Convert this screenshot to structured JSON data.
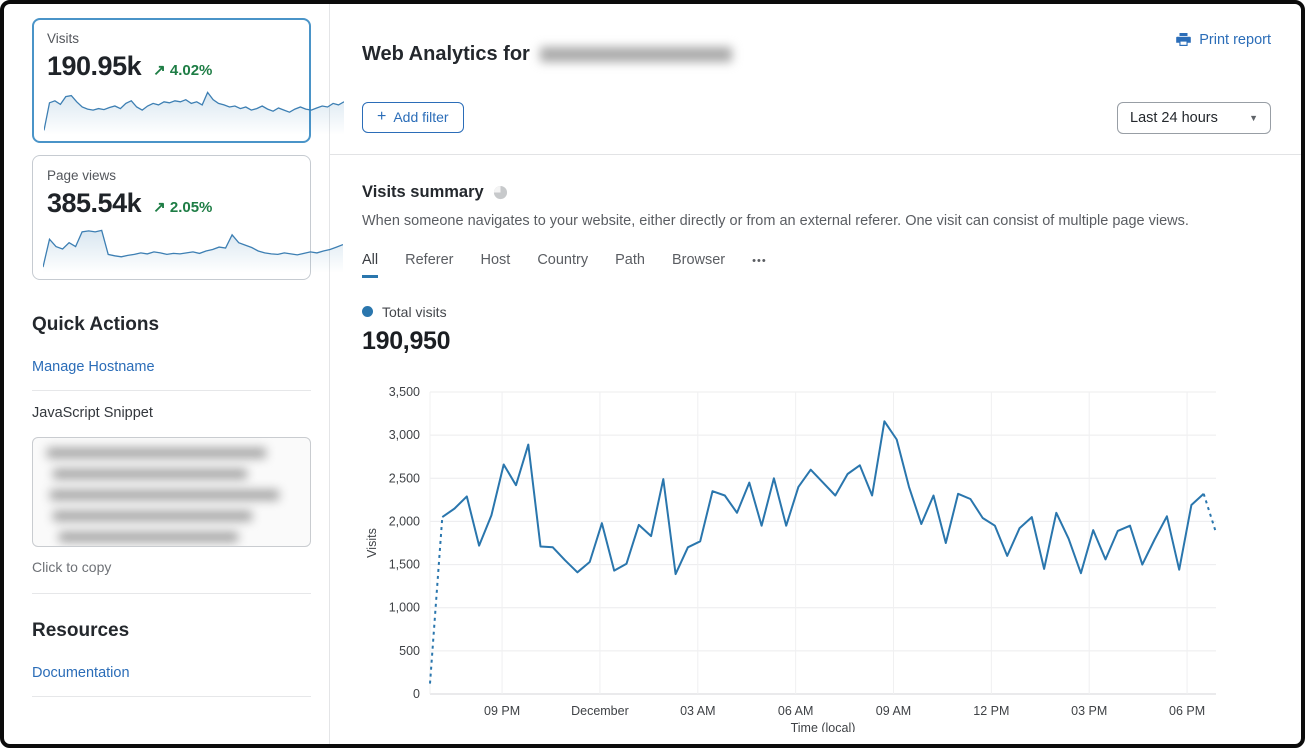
{
  "colors": {
    "accent_blue": "#2b6db8",
    "chart_blue": "#2a76ad",
    "positive_green": "#1e7d45",
    "selected_card_border": "#4a94c8"
  },
  "sidebar": {
    "metric_cards": [
      {
        "label": "Visits",
        "value": "190.95k",
        "delta_arrow": "↗",
        "delta": "4.02%",
        "spark": [
          5,
          58,
          62,
          55,
          70,
          72,
          60,
          50,
          46,
          44,
          47,
          45,
          49,
          52,
          47,
          57,
          62,
          50,
          44,
          52,
          57,
          54,
          60,
          58,
          62,
          60,
          64,
          57,
          60,
          54,
          78,
          64,
          57,
          54,
          50,
          52,
          47,
          50,
          44,
          47,
          52,
          46,
          42,
          48,
          44,
          40,
          46,
          50,
          46,
          44,
          48,
          52,
          50,
          57,
          54,
          60
        ]
      },
      {
        "label": "Page views",
        "value": "385.54k",
        "delta_arrow": "↗",
        "delta": "2.05%",
        "spark": [
          8,
          65,
          50,
          45,
          58,
          50,
          80,
          82,
          80,
          83,
          34,
          31,
          29,
          32,
          34,
          37,
          35,
          39,
          37,
          34,
          36,
          35,
          37,
          39,
          36,
          41,
          44,
          49,
          47,
          74,
          58,
          53,
          48,
          41,
          37,
          35,
          34,
          37,
          35,
          33,
          36,
          39,
          37,
          41,
          44,
          49,
          54
        ]
      }
    ],
    "quick_actions": {
      "heading": "Quick Actions",
      "manage_hostname": "Manage Hostname",
      "snippet_label": "JavaScript Snippet",
      "click_to_copy": "Click to copy"
    },
    "resources": {
      "heading": "Resources",
      "documentation": "Documentation"
    }
  },
  "header": {
    "title_prefix": "Web Analytics for",
    "print_report": "Print report",
    "add_filter": {
      "icon": "+",
      "label": "Add filter"
    },
    "time_range": "Last 24 hours"
  },
  "summary": {
    "title": "Visits summary",
    "description": "When someone navigates to your website, either directly or from an external referer. One visit can consist of multiple page views.",
    "tabs": [
      "All",
      "Referer",
      "Host",
      "Country",
      "Path",
      "Browser"
    ],
    "active_tab": "All",
    "tabs_overflow": "•••",
    "legend_label": "Total visits",
    "total": "190,950"
  },
  "chart_data": {
    "type": "line",
    "title": "Total visits",
    "xlabel": "Time (local)",
    "ylabel": "Visits",
    "ylim": [
      0,
      3500
    ],
    "y_tick_step": 500,
    "x_tick_labels": [
      "09 PM",
      "December",
      "03 AM",
      "06 AM",
      "09 AM",
      "12 PM",
      "03 PM",
      "06 PM"
    ],
    "x_tick_first_fraction": 0.0917,
    "x_tick_spacing_fraction": 0.1245,
    "grid": true,
    "legend_position": "top-left",
    "line_color": "#2a76ad",
    "dashed_head_points": 2,
    "dashed_tail_points": 2,
    "series": [
      {
        "name": "Total visits",
        "values": [
          120,
          2050,
          2150,
          2290,
          1720,
          2070,
          2660,
          2420,
          2890,
          1710,
          1700,
          1550,
          1410,
          1530,
          1980,
          1430,
          1510,
          1960,
          1830,
          2490,
          1390,
          1700,
          1770,
          2350,
          2300,
          2100,
          2450,
          1950,
          2500,
          1950,
          2400,
          2600,
          2450,
          2300,
          2550,
          2650,
          2300,
          3160,
          2950,
          2400,
          1970,
          2300,
          1750,
          2320,
          2260,
          2040,
          1950,
          1600,
          1920,
          2050,
          1450,
          2100,
          1800,
          1400,
          1900,
          1560,
          1890,
          1950,
          1500,
          1790,
          2060,
          1440,
          2190,
          2320,
          1870
        ]
      }
    ]
  }
}
